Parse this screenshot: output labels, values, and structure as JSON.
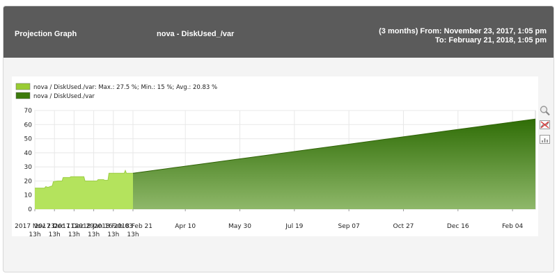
{
  "header": {
    "title": "Projection Graph",
    "series": "nova - DiskUsed_/var",
    "range_line1": "(3 months) From: November 23, 2017, 1:05 pm",
    "range_line2": "To: February 21, 2018, 1:05 pm"
  },
  "icons": [
    "zoom-icon",
    "reset-zoom-icon",
    "chart-type-icon"
  ],
  "colors": {
    "header_bg": "#5b5b5b",
    "actual_fill": "#b4e35d",
    "actual_legend": "#99cc33",
    "projection_fill": "#3c7a0c",
    "grid": "#e8e8e8"
  },
  "chart_data": {
    "type": "area",
    "legend_position": "top-left",
    "grid": true,
    "ylim": [
      0,
      70
    ],
    "yticks": [
      0,
      10,
      20,
      30,
      40,
      50,
      60,
      70
    ],
    "xlim": [
      "2017-11-23",
      "2019-02-25"
    ],
    "xticks": [
      {
        "date": "2017-11-23",
        "label": "2017 Nov 23",
        "sub": "13h"
      },
      {
        "date": "2017-12-11",
        "label": "2017 Dec 11",
        "sub": "13h"
      },
      {
        "date": "2017-12-29",
        "label": "2017 Dec 29",
        "sub": "13h"
      },
      {
        "date": "2018-01-16",
        "label": "2018 Jan 16",
        "sub": "13h"
      },
      {
        "date": "2018-02-03",
        "label": "2018 Feb 03",
        "sub": "13h"
      },
      {
        "date": "2018-02-21",
        "label": "2018 Feb 21",
        "sub": "13h"
      },
      {
        "date": "2018-04-10",
        "label": "Apr 10",
        "sub": ""
      },
      {
        "date": "2018-05-30",
        "label": "May 30",
        "sub": ""
      },
      {
        "date": "2018-07-19",
        "label": "Jul 19",
        "sub": ""
      },
      {
        "date": "2018-09-07",
        "label": "Sep 07",
        "sub": ""
      },
      {
        "date": "2018-10-27",
        "label": "Oct 27",
        "sub": ""
      },
      {
        "date": "2018-12-16",
        "label": "Dec 16",
        "sub": ""
      },
      {
        "date": "2019-02-04",
        "label": "Feb 04",
        "sub": ""
      }
    ],
    "series": [
      {
        "name": "nova / DiskUsed./var: Max.: 27.5 %; Min.: 15 %; Avg.: 20.83 %",
        "color": "#b4e35d",
        "points": [
          [
            "2017-11-23",
            15
          ],
          [
            "2017-12-02",
            15
          ],
          [
            "2017-12-03",
            16
          ],
          [
            "2017-12-05",
            15.5
          ],
          [
            "2017-12-07",
            16
          ],
          [
            "2017-12-09",
            16.5
          ],
          [
            "2017-12-10",
            19.5
          ],
          [
            "2017-12-14",
            20
          ],
          [
            "2017-12-18",
            20
          ],
          [
            "2017-12-19",
            22.5
          ],
          [
            "2017-12-25",
            22.5
          ],
          [
            "2017-12-26",
            23
          ],
          [
            "2018-01-07",
            23
          ],
          [
            "2018-01-08",
            20
          ],
          [
            "2018-01-19",
            20
          ],
          [
            "2018-01-20",
            21
          ],
          [
            "2018-01-25",
            21
          ],
          [
            "2018-01-26",
            20.5
          ],
          [
            "2018-01-29",
            20.5
          ],
          [
            "2018-01-30",
            25.5
          ],
          [
            "2018-02-13",
            25.5
          ],
          [
            "2018-02-14",
            27.5
          ],
          [
            "2018-02-15",
            25.5
          ],
          [
            "2018-02-21",
            25.5
          ]
        ]
      },
      {
        "name": "nova / DiskUsed./var",
        "color": "#3c7a0c",
        "points": [
          [
            "2018-02-21",
            25.5
          ],
          [
            "2019-02-25",
            64
          ]
        ]
      }
    ]
  }
}
